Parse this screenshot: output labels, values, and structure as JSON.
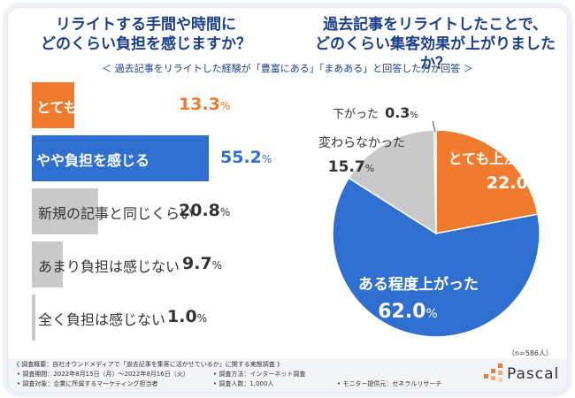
{
  "left_title": "リライトする手間や時間に\nどのくらい負担を感じますか？",
  "right_title": "過去記事をリライトしたことで、\nどのくらい集客効果が上がりましたか？",
  "subtitle": "＜ 過去記事をリライトした経験が「豊富にある」「まあある」と回答した方が回答 ＞",
  "sample_note": "（n=586人）",
  "colors": {
    "accent_orange": "#f07a2e",
    "primary_blue": "#2f6fd0",
    "gray": "#c9c9c9",
    "dark_gray": "#a3a3a3",
    "title_blue": "#1b3f8a"
  },
  "chart_data": [
    {
      "type": "bar",
      "orientation": "horizontal",
      "title": "リライトする手間や時間にどのくらい負担を感じますか？",
      "categories": [
        "とても負担を感じる",
        "やや負担を感じる",
        "新規の記事と同じくらい",
        "あまり負担は感じない",
        "全く負担は感じない"
      ],
      "values": [
        13.3,
        55.2,
        20.8,
        9.7,
        1.0
      ],
      "value_labels": [
        {
          "main": "13.3",
          "unit": "%"
        },
        {
          "main": "55.2",
          "unit": "%"
        },
        {
          "main": "20.8",
          "unit": "%"
        },
        {
          "main": "9.7",
          "unit": "%"
        },
        {
          "main": "1.0",
          "unit": "%"
        }
      ],
      "unit": "%"
    },
    {
      "type": "pie",
      "title": "過去記事をリライトしたことで、どのくらい集客効果が上がりましたか？",
      "categories": [
        "とても上がった",
        "ある程度上がった",
        "変わらなかった",
        "下がった"
      ],
      "values": [
        22.0,
        62.0,
        15.7,
        0.3
      ],
      "value_labels": [
        {
          "main": "22.0",
          "unit": "%"
        },
        {
          "main": "62.0",
          "unit": "%"
        },
        {
          "main": "15.7",
          "unit": "%"
        },
        {
          "main": "0.3",
          "unit": "%"
        }
      ],
      "unit": "%"
    }
  ],
  "footer": {
    "overview": "《 調査概要：自社オウンドメディアで「過去記事を集客に活かせているか」に関する実態調査 》",
    "period": "• 調査期間：2022年8月15日（月）～2022年8月16日（火）",
    "method": "• 調査方法：インターネット調査",
    "target": "• 調査対象：企業に所属するマーケティング担当者",
    "count": "• 調査人数：1,000人",
    "provider": "• モニター提供元：ゼネラルリサーチ"
  },
  "logo": {
    "text": "Pascal"
  }
}
